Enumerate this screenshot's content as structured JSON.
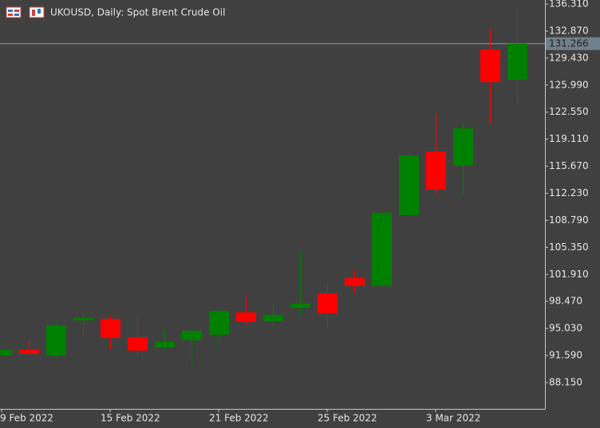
{
  "chart_data": {
    "type": "candlestick",
    "title": "UKOUSD, Daily:  Spot Brent Crude Oil",
    "categories": [
      "9 Feb 2022",
      null,
      null,
      null,
      "15 Feb 2022",
      null,
      null,
      null,
      "21 Feb 2022",
      null,
      null,
      null,
      "25 Feb 2022",
      null,
      null,
      null,
      "3 Mar 2022",
      null,
      null,
      null
    ],
    "open": [
      91.6,
      92.31,
      91.6,
      96.06,
      96.26,
      93.93,
      92.61,
      93.53,
      94.23,
      97.07,
      95.96,
      97.68,
      99.51,
      101.43,
      100.42,
      109.44,
      117.55,
      115.73,
      130.53,
      126.68
    ],
    "high": [
      92.4,
      93.53,
      95.86,
      96.97,
      96.66,
      96.56,
      94.84,
      94.84,
      97.27,
      99.1,
      98.29,
      104.78,
      100.82,
      102.45,
      109.75,
      117.35,
      122.32,
      121.3,
      133.17,
      135.8
    ],
    "low": [
      91.5,
      91.5,
      90.99,
      94.03,
      92.41,
      91.4,
      92.1,
      90.28,
      92.81,
      95.45,
      95.25,
      96.67,
      95.04,
      99.51,
      100.42,
      109.34,
      112.08,
      111.98,
      121.1,
      123.53
    ],
    "close": [
      92.31,
      91.8,
      95.45,
      96.36,
      93.83,
      92.21,
      93.32,
      94.74,
      97.27,
      95.86,
      96.77,
      98.19,
      96.97,
      100.42,
      109.75,
      117.05,
      112.69,
      120.49,
      126.37,
      131.27
    ],
    "up_color": "#008000",
    "down_color": "#ff0000",
    "last_price": 131.266,
    "ylim": [
      84.8,
      136.82
    ],
    "yticks": [
      {
        "value": 136.31,
        "label": "136.310"
      },
      {
        "value": 132.87,
        "label": "132.870"
      },
      {
        "value": 129.43,
        "label": "129.430"
      },
      {
        "value": 125.99,
        "label": "125.990"
      },
      {
        "value": 122.55,
        "label": "122.550"
      },
      {
        "value": 119.11,
        "label": "119.110"
      },
      {
        "value": 115.67,
        "label": "115.670"
      },
      {
        "value": 112.23,
        "label": "112.230"
      },
      {
        "value": 108.79,
        "label": "108.790"
      },
      {
        "value": 105.35,
        "label": "105.350"
      },
      {
        "value": 101.91,
        "label": "101.910"
      },
      {
        "value": 98.47,
        "label": "98.470"
      },
      {
        "value": 95.03,
        "label": "95.030"
      },
      {
        "value": 91.59,
        "label": "91.590"
      },
      {
        "value": 88.15,
        "label": "88.150"
      }
    ]
  }
}
